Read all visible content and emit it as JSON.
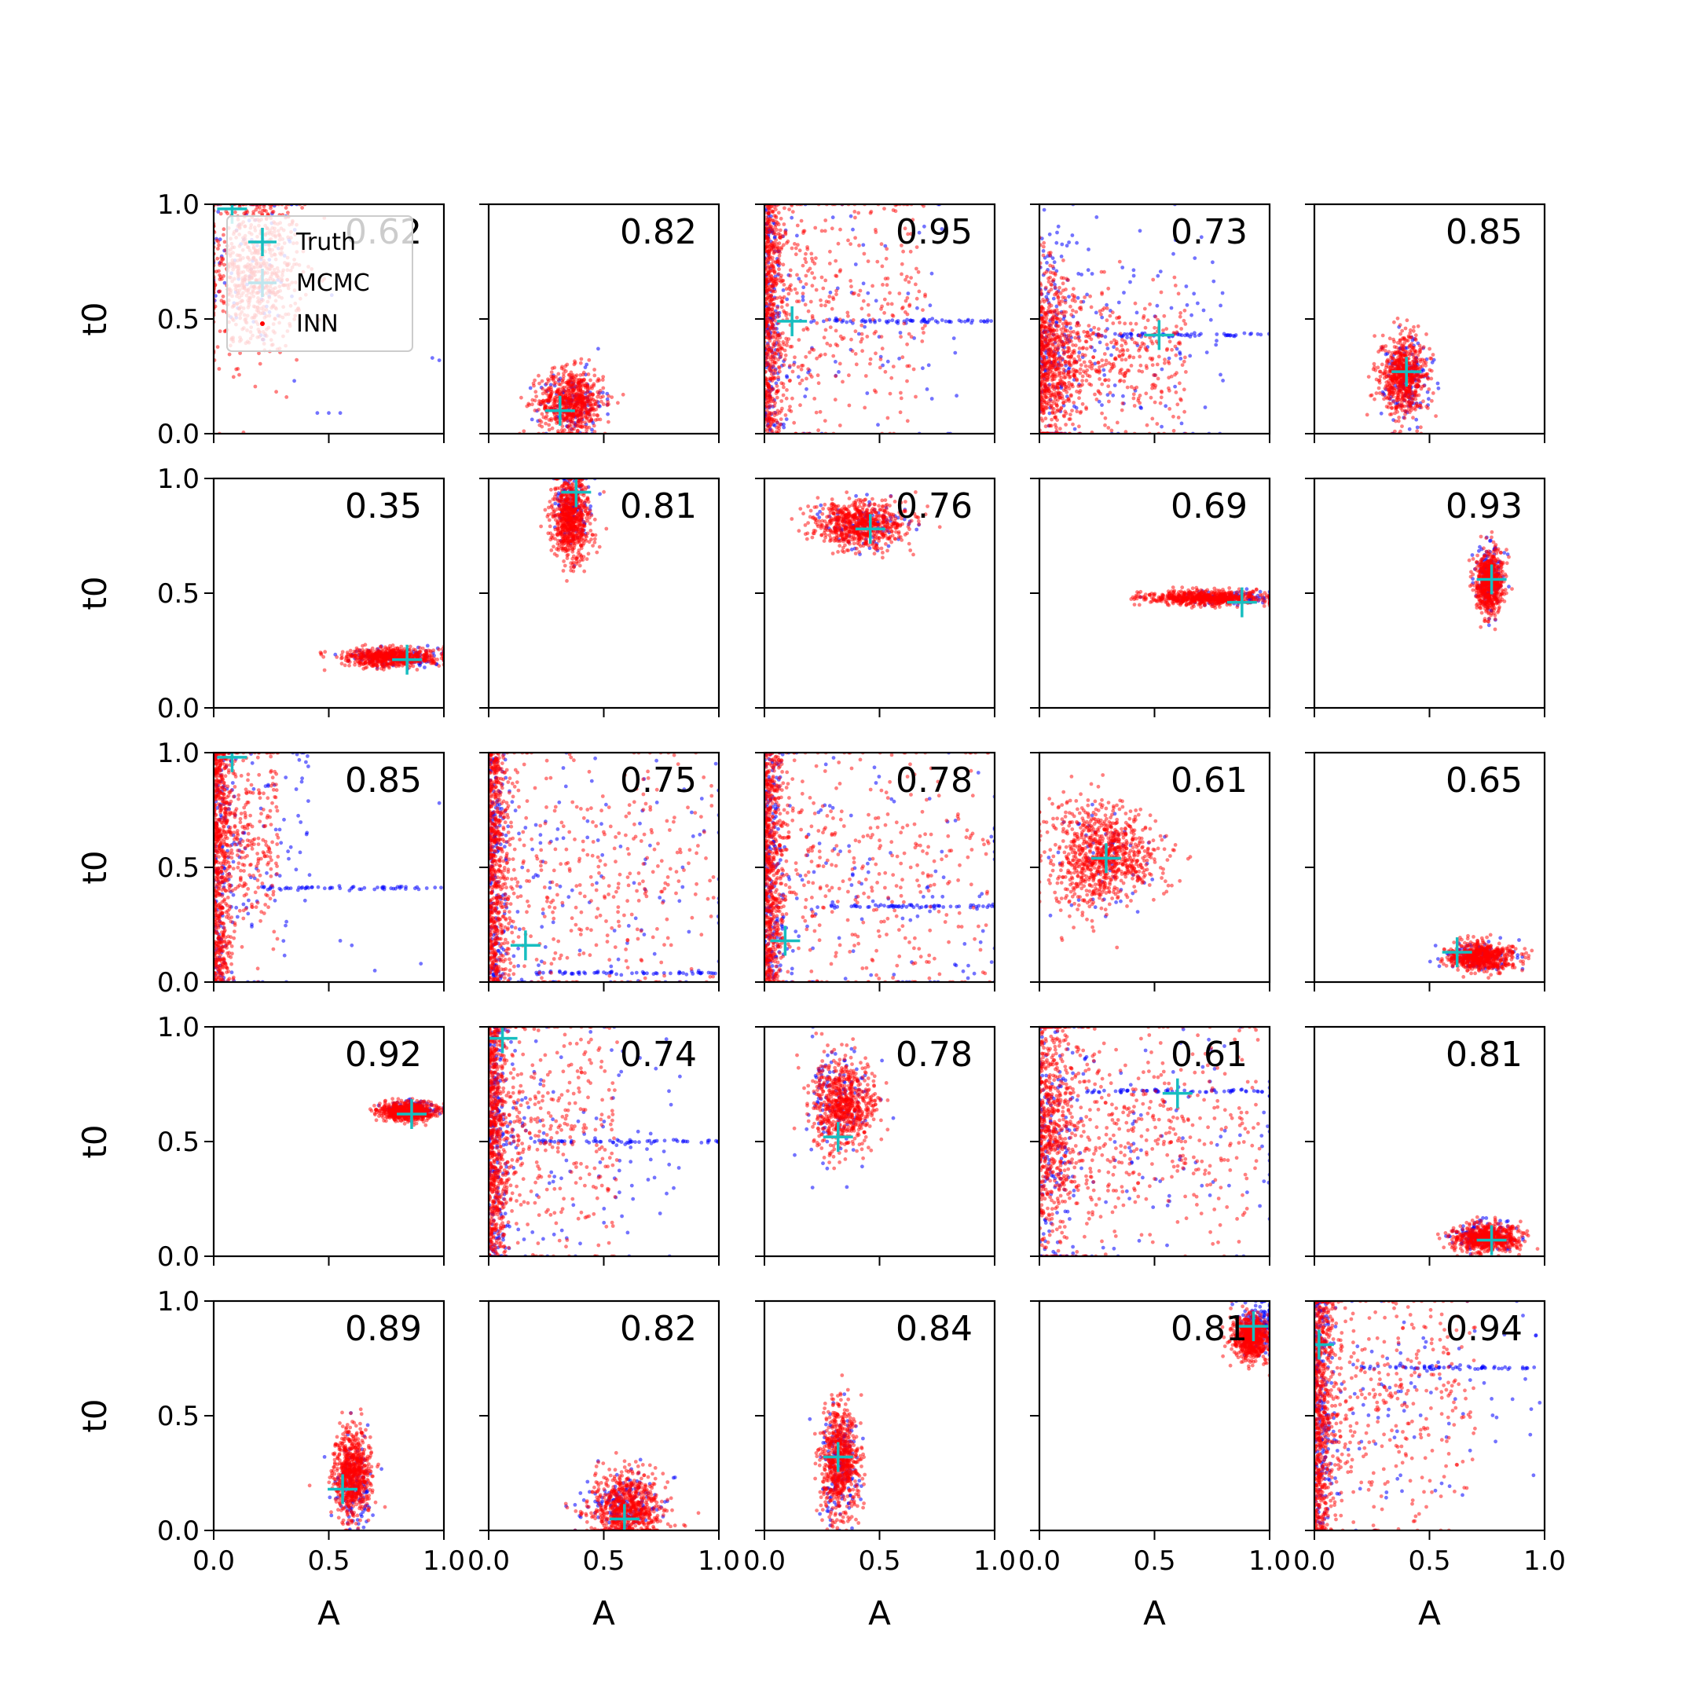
{
  "colors": {
    "truth": "#17bec0",
    "mcmc": "#0000ff",
    "inn": "#ff0000",
    "axis": "#000000"
  },
  "chart_data": {
    "type": "scatter",
    "rows": 5,
    "cols": 5,
    "xlabel": "A",
    "ylabel": "t0",
    "xlim": [
      0,
      1
    ],
    "ylim": [
      0,
      1
    ],
    "xticks": [
      0.0,
      0.5,
      1.0
    ],
    "yticks": [
      0.0,
      0.5,
      1.0
    ],
    "xtick_labels": [
      "0.0",
      "0.5",
      "1.0"
    ],
    "ytick_labels": [
      "0.0",
      "0.5",
      "1.0"
    ],
    "grid": false,
    "legend": {
      "location": "upper-left",
      "panel": 0,
      "entries": [
        {
          "label": "Truth",
          "marker": "plus",
          "color": "#17bec0"
        },
        {
          "label": "MCMC",
          "marker": "plus",
          "color": "#bfe6ee"
        },
        {
          "label": "INN",
          "marker": "dot",
          "color": "#ff0000"
        }
      ]
    },
    "panels": [
      {
        "score": "0.62",
        "truth": [
          0.08,
          0.98
        ],
        "inn": {
          "cx": 0.18,
          "cy": 0.7,
          "sx": 0.1,
          "sy": 0.18,
          "n": 700,
          "shape": "cloud"
        },
        "mcmc": {
          "cx": 0.18,
          "cy": 0.75,
          "sx": 0.12,
          "sy": 0.2,
          "n": 80,
          "shape": "cloud",
          "extras": [
            [
              0.45,
              0.09
            ],
            [
              0.5,
              0.09
            ],
            [
              0.55,
              0.09
            ],
            [
              0.95,
              0.33
            ],
            [
              0.98,
              0.32
            ],
            [
              0.35,
              0.23
            ]
          ]
        }
      },
      {
        "score": "0.82",
        "truth": [
          0.31,
          0.1
        ],
        "inn": {
          "cx": 0.36,
          "cy": 0.14,
          "sx": 0.07,
          "sy": 0.07,
          "n": 650,
          "shape": "blob"
        },
        "mcmc": {
          "cx": 0.36,
          "cy": 0.13,
          "sx": 0.07,
          "sy": 0.07,
          "n": 120,
          "shape": "blob"
        }
      },
      {
        "score": "0.95",
        "truth": [
          0.12,
          0.49
        ],
        "inn": {
          "cx": 0.04,
          "cy": 0.55,
          "sx": 0.25,
          "sy": 0.3,
          "n": 900,
          "shape": "wall"
        },
        "mcmc": {
          "cx": 0.05,
          "cy": 0.5,
          "sx": 0.3,
          "sy": 0.3,
          "n": 250,
          "shape": "wall",
          "band": 0.49
        }
      },
      {
        "score": "0.73",
        "truth": [
          0.52,
          0.43
        ],
        "inn": {
          "cx": 0.15,
          "cy": 0.33,
          "sx": 0.2,
          "sy": 0.18,
          "n": 1000,
          "shape": "fan"
        },
        "mcmc": {
          "cx": 0.15,
          "cy": 0.4,
          "sx": 0.25,
          "sy": 0.3,
          "n": 250,
          "shape": "fan",
          "band": 0.43
        }
      },
      {
        "score": "0.85",
        "truth": [
          0.4,
          0.27
        ],
        "inn": {
          "cx": 0.39,
          "cy": 0.25,
          "sx": 0.05,
          "sy": 0.09,
          "n": 650,
          "shape": "blob"
        },
        "mcmc": {
          "cx": 0.4,
          "cy": 0.24,
          "sx": 0.05,
          "sy": 0.09,
          "n": 150,
          "shape": "blob"
        }
      },
      {
        "score": "0.35",
        "truth": [
          0.84,
          0.21
        ],
        "inn": {
          "cx": 0.77,
          "cy": 0.22,
          "sx": 0.1,
          "sy": 0.02,
          "n": 650,
          "shape": "blob"
        },
        "mcmc": {
          "cx": 0.8,
          "cy": 0.22,
          "sx": 0.1,
          "sy": 0.02,
          "n": 120,
          "shape": "blob"
        }
      },
      {
        "score": "0.81",
        "truth": [
          0.38,
          0.94
        ],
        "inn": {
          "cx": 0.36,
          "cy": 0.83,
          "sx": 0.04,
          "sy": 0.09,
          "n": 700,
          "shape": "blob"
        },
        "mcmc": {
          "cx": 0.37,
          "cy": 0.88,
          "sx": 0.04,
          "sy": 0.08,
          "n": 120,
          "shape": "blob"
        }
      },
      {
        "score": "0.76",
        "truth": [
          0.46,
          0.78
        ],
        "inn": {
          "cx": 0.42,
          "cy": 0.8,
          "sx": 0.1,
          "sy": 0.05,
          "n": 700,
          "shape": "blob"
        },
        "mcmc": {
          "cx": 0.42,
          "cy": 0.8,
          "sx": 0.1,
          "sy": 0.05,
          "n": 100,
          "shape": "blob"
        }
      },
      {
        "score": "0.69",
        "truth": [
          0.88,
          0.46
        ],
        "inn": {
          "cx": 0.72,
          "cy": 0.48,
          "sx": 0.13,
          "sy": 0.015,
          "n": 650,
          "shape": "blob"
        },
        "mcmc": {
          "cx": 0.8,
          "cy": 0.48,
          "sx": 0.12,
          "sy": 0.015,
          "n": 100,
          "shape": "blob"
        }
      },
      {
        "score": "0.93",
        "truth": [
          0.77,
          0.56
        ],
        "inn": {
          "cx": 0.76,
          "cy": 0.55,
          "sx": 0.03,
          "sy": 0.07,
          "n": 650,
          "shape": "blob"
        },
        "mcmc": {
          "cx": 0.76,
          "cy": 0.57,
          "sx": 0.03,
          "sy": 0.07,
          "n": 150,
          "shape": "blob"
        }
      },
      {
        "score": "0.85",
        "truth": [
          0.08,
          0.98
        ],
        "inn": {
          "cx": 0.06,
          "cy": 0.65,
          "sx": 0.1,
          "sy": 0.25,
          "n": 900,
          "shape": "wall"
        },
        "mcmc": {
          "cx": 0.05,
          "cy": 0.55,
          "sx": 0.15,
          "sy": 0.3,
          "n": 200,
          "shape": "wall",
          "band": 0.41,
          "extras": [
            [
              0.55,
              0.18
            ],
            [
              0.6,
              0.16
            ],
            [
              0.7,
              0.05
            ],
            [
              0.9,
              0.08
            ],
            [
              0.98,
              0.78
            ]
          ]
        }
      },
      {
        "score": "0.75",
        "truth": [
          0.16,
          0.16
        ],
        "inn": {
          "cx": 0.05,
          "cy": 0.45,
          "sx": 0.35,
          "sy": 0.3,
          "n": 950,
          "shape": "wall"
        },
        "mcmc": {
          "cx": 0.05,
          "cy": 0.4,
          "sx": 0.4,
          "sy": 0.3,
          "n": 300,
          "shape": "wall",
          "band": 0.04
        }
      },
      {
        "score": "0.78",
        "truth": [
          0.09,
          0.18
        ],
        "inn": {
          "cx": 0.05,
          "cy": 0.5,
          "sx": 0.35,
          "sy": 0.3,
          "n": 1000,
          "shape": "wall"
        },
        "mcmc": {
          "cx": 0.05,
          "cy": 0.45,
          "sx": 0.4,
          "sy": 0.3,
          "n": 300,
          "shape": "wall",
          "band": 0.33
        }
      },
      {
        "score": "0.61",
        "truth": [
          0.29,
          0.54
        ],
        "inn": {
          "cx": 0.28,
          "cy": 0.55,
          "sx": 0.12,
          "sy": 0.1,
          "n": 900,
          "shape": "cone"
        },
        "mcmc": {
          "cx": 0.25,
          "cy": 0.55,
          "sx": 0.12,
          "sy": 0.1,
          "n": 60,
          "shape": "cone"
        }
      },
      {
        "score": "0.65",
        "truth": [
          0.62,
          0.13
        ],
        "inn": {
          "cx": 0.72,
          "cy": 0.11,
          "sx": 0.07,
          "sy": 0.03,
          "n": 650,
          "shape": "blob"
        },
        "mcmc": {
          "cx": 0.7,
          "cy": 0.11,
          "sx": 0.07,
          "sy": 0.03,
          "n": 120,
          "shape": "blob"
        }
      },
      {
        "score": "0.92",
        "truth": [
          0.86,
          0.62
        ],
        "inn": {
          "cx": 0.84,
          "cy": 0.63,
          "sx": 0.06,
          "sy": 0.02,
          "n": 650,
          "shape": "blob"
        },
        "mcmc": {
          "cx": 0.87,
          "cy": 0.64,
          "sx": 0.06,
          "sy": 0.02,
          "n": 100,
          "shape": "blob"
        }
      },
      {
        "score": "0.74",
        "truth": [
          0.06,
          0.95
        ],
        "inn": {
          "cx": 0.03,
          "cy": 0.55,
          "sx": 0.2,
          "sy": 0.28,
          "n": 950,
          "shape": "wall"
        },
        "mcmc": {
          "cx": 0.05,
          "cy": 0.45,
          "sx": 0.3,
          "sy": 0.28,
          "n": 300,
          "shape": "wall",
          "band": 0.5
        }
      },
      {
        "score": "0.78",
        "truth": [
          0.32,
          0.52
        ],
        "inn": {
          "cx": 0.34,
          "cy": 0.66,
          "sx": 0.07,
          "sy": 0.09,
          "n": 700,
          "shape": "cone"
        },
        "mcmc": {
          "cx": 0.34,
          "cy": 0.7,
          "sx": 0.08,
          "sy": 0.12,
          "n": 120,
          "shape": "cone"
        }
      },
      {
        "score": "0.61",
        "truth": [
          0.6,
          0.71
        ],
        "inn": {
          "cx": 0.05,
          "cy": 0.55,
          "sx": 0.3,
          "sy": 0.28,
          "n": 1000,
          "shape": "fan"
        },
        "mcmc": {
          "cx": 0.05,
          "cy": 0.45,
          "sx": 0.35,
          "sy": 0.3,
          "n": 250,
          "shape": "fan",
          "band": 0.72
        }
      },
      {
        "score": "0.81",
        "truth": [
          0.77,
          0.07
        ],
        "inn": {
          "cx": 0.75,
          "cy": 0.08,
          "sx": 0.07,
          "sy": 0.03,
          "n": 650,
          "shape": "blob"
        },
        "mcmc": {
          "cx": 0.74,
          "cy": 0.09,
          "sx": 0.07,
          "sy": 0.03,
          "n": 130,
          "shape": "blob"
        }
      },
      {
        "score": "0.89",
        "truth": [
          0.56,
          0.18
        ],
        "inn": {
          "cx": 0.6,
          "cy": 0.25,
          "sx": 0.04,
          "sy": 0.1,
          "n": 700,
          "shape": "blob"
        },
        "mcmc": {
          "cx": 0.61,
          "cy": 0.2,
          "sx": 0.04,
          "sy": 0.1,
          "n": 130,
          "shape": "blob"
        }
      },
      {
        "score": "0.82",
        "truth": [
          0.59,
          0.05
        ],
        "inn": {
          "cx": 0.6,
          "cy": 0.1,
          "sx": 0.08,
          "sy": 0.07,
          "n": 700,
          "shape": "blob"
        },
        "mcmc": {
          "cx": 0.58,
          "cy": 0.1,
          "sx": 0.08,
          "sy": 0.07,
          "n": 150,
          "shape": "blob"
        }
      },
      {
        "score": "0.84",
        "truth": [
          0.32,
          0.32
        ],
        "inn": {
          "cx": 0.33,
          "cy": 0.3,
          "sx": 0.04,
          "sy": 0.12,
          "n": 700,
          "shape": "blob"
        },
        "mcmc": {
          "cx": 0.33,
          "cy": 0.28,
          "sx": 0.04,
          "sy": 0.12,
          "n": 150,
          "shape": "blob"
        }
      },
      {
        "score": "0.81",
        "truth": [
          0.93,
          0.89
        ],
        "inn": {
          "cx": 0.92,
          "cy": 0.84,
          "sx": 0.04,
          "sy": 0.05,
          "n": 650,
          "shape": "blob"
        },
        "mcmc": {
          "cx": 0.95,
          "cy": 0.9,
          "sx": 0.04,
          "sy": 0.06,
          "n": 150,
          "shape": "blob"
        }
      },
      {
        "score": "0.94",
        "truth": [
          0.02,
          0.81
        ],
        "inn": {
          "cx": 0.03,
          "cy": 0.55,
          "sx": 0.25,
          "sy": 0.28,
          "n": 950,
          "shape": "wall"
        },
        "mcmc": {
          "cx": 0.05,
          "cy": 0.6,
          "sx": 0.35,
          "sy": 0.28,
          "n": 300,
          "shape": "wall",
          "band": 0.71
        }
      }
    ]
  }
}
